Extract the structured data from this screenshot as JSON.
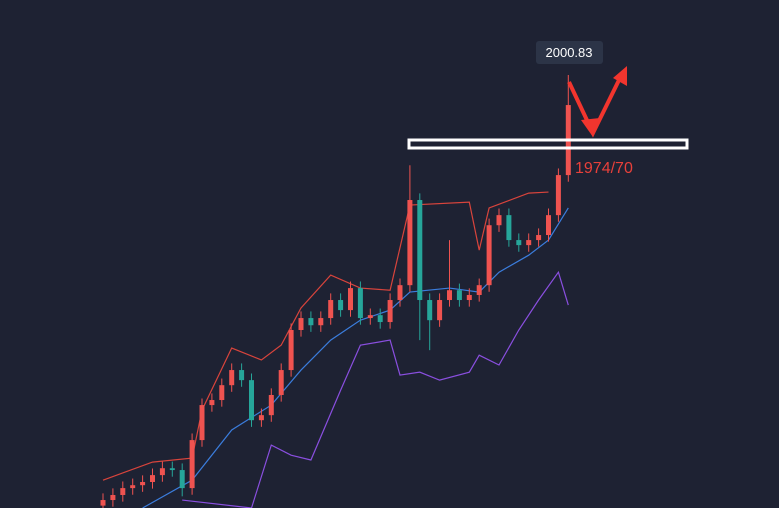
{
  "chart_data": {
    "type": "candlestick",
    "open": [
      1838.5,
      1840.6,
      1842.5,
      1845.1,
      1846.2,
      1847.4,
      1850.0,
      1852.6,
      1851.9,
      1845.1,
      1863.2,
      1876.4,
      1878.3,
      1883.9,
      1889.6,
      1885.8,
      1870.7,
      1872.6,
      1880.2,
      1889.6,
      1904.7,
      1909.2,
      1906.5,
      1909.2,
      1916.0,
      1912.2,
      1920.5,
      1909.2,
      1910.3,
      1907.7,
      1916.0,
      1921.6,
      1953.7,
      1916.0,
      1908.4,
      1916.0,
      1919.7,
      1916.0,
      1917.9,
      1921.6,
      1944.2,
      1948.0,
      1938.6,
      1936.7,
      1938.6,
      1940.5,
      1948.0,
      1963.1
    ],
    "high": [
      1843.1,
      1845.0,
      1847.6,
      1848.7,
      1849.9,
      1852.5,
      1855.1,
      1855.1,
      1854.4,
      1865.7,
      1878.9,
      1880.8,
      1886.4,
      1892.1,
      1892.1,
      1888.3,
      1875.1,
      1882.7,
      1892.1,
      1907.2,
      1911.7,
      1911.7,
      1911.7,
      1918.5,
      1918.5,
      1923.0,
      1923.0,
      1912.8,
      1912.8,
      1918.5,
      1924.1,
      1966.8,
      1956.2,
      1918.5,
      1918.5,
      1938.6,
      1922.2,
      1920.4,
      1924.1,
      1946.7,
      1950.5,
      1950.5,
      1941.1,
      1941.1,
      1943.0,
      1950.5,
      1965.6,
      2000.83
    ],
    "low": [
      1836.0,
      1838.1,
      1840.0,
      1842.6,
      1843.7,
      1844.9,
      1847.5,
      1849.4,
      1842.0,
      1842.6,
      1860.7,
      1873.9,
      1875.8,
      1881.4,
      1883.3,
      1868.2,
      1868.2,
      1870.1,
      1877.7,
      1887.1,
      1902.2,
      1904.0,
      1904.0,
      1906.7,
      1909.7,
      1909.7,
      1906.7,
      1906.7,
      1905.2,
      1905.2,
      1913.5,
      1919.1,
      1900.9,
      1897.1,
      1905.9,
      1913.5,
      1913.5,
      1913.5,
      1915.4,
      1919.1,
      1941.7,
      1936.1,
      1934.2,
      1934.2,
      1936.1,
      1938.0,
      1945.5,
      1960.6
    ],
    "close": [
      1840.6,
      1842.5,
      1845.1,
      1846.2,
      1847.4,
      1850.0,
      1852.6,
      1851.9,
      1845.1,
      1863.2,
      1876.4,
      1878.3,
      1883.9,
      1889.6,
      1885.8,
      1870.7,
      1872.6,
      1880.2,
      1889.6,
      1904.7,
      1909.2,
      1906.5,
      1909.2,
      1916.0,
      1912.2,
      1920.5,
      1909.2,
      1910.3,
      1907.7,
      1916.0,
      1921.6,
      1953.7,
      1916.0,
      1908.4,
      1916.0,
      1919.7,
      1916.0,
      1917.9,
      1921.6,
      1944.2,
      1948.0,
      1938.6,
      1936.7,
      1938.6,
      1940.5,
      1948.0,
      1963.1,
      1989.5
    ],
    "up_color": "#ef5350",
    "down_color": "#26a69a",
    "ylim": [
      1837.6,
      2029.1
    ],
    "bands": [
      {
        "color": "#d9443c",
        "x": [
          0,
          5,
          9,
          10,
          13,
          16,
          18,
          20,
          23,
          26,
          29,
          31,
          37,
          38,
          39,
          43,
          45
        ],
        "values": [
          1848.1,
          1854.9,
          1856.4,
          1874.5,
          1897.9,
          1893.4,
          1899.0,
          1913.0,
          1925.4,
          1920.5,
          1919.7,
          1951.8,
          1952.9,
          1934.8,
          1950.7,
          1956.3,
          1956.7
        ]
      },
      {
        "color": "#3b7ddd",
        "x": [
          4,
          9,
          13,
          17,
          20,
          23,
          26,
          29,
          31,
          35,
          38,
          40,
          43,
          45,
          47
        ],
        "values": [
          1837.6,
          1848.1,
          1867.0,
          1876.4,
          1889.6,
          1900.9,
          1908.4,
          1912.2,
          1919.0,
          1920.5,
          1919.0,
          1926.5,
          1932.9,
          1938.6,
          1950.7
        ]
      },
      {
        "color": "#8a4fe0",
        "x": [
          8,
          15,
          17,
          19,
          21,
          24,
          26,
          29,
          30,
          32,
          34,
          37,
          38,
          40,
          42,
          44,
          46,
          47
        ],
        "values": [
          1840.6,
          1837.6,
          1861.3,
          1857.5,
          1855.7,
          1882.0,
          1899.0,
          1900.9,
          1887.7,
          1888.8,
          1885.8,
          1888.8,
          1895.2,
          1891.5,
          1904.7,
          1916.0,
          1926.5,
          1914.1
        ]
      }
    ],
    "price_label": "2000.83",
    "level_label": "1974/70"
  }
}
